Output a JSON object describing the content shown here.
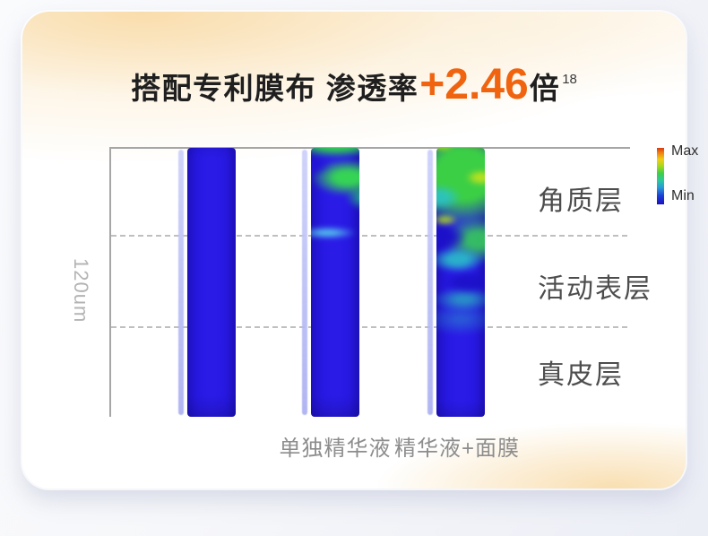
{
  "title": {
    "prefix": "搭配专利膜布 渗透率",
    "highlight": "+2.46",
    "suffix": "倍",
    "superscript": "18"
  },
  "y_axis_label": "120um",
  "legend": {
    "max_label": "Max",
    "min_label": "Min"
  },
  "layer_labels": [
    "角质层",
    "活动表层",
    "真皮层"
  ],
  "bar_labels": [
    "单独精华液",
    "精华液+面膜"
  ],
  "colors": {
    "accent_orange": "#F0640F",
    "bar_blue": "#2315D2",
    "heat_green": "#3BCF45",
    "heat_max_red": "#D93A10",
    "card_peach": "#F9DBA8"
  },
  "chart_data": {
    "type": "heatmap",
    "title": "搭配专利膜布 渗透率+2.46倍",
    "annotation_superscript": "18",
    "penetration_ratio": "+2.46倍",
    "categories": [
      "",
      "单独精华液",
      "精华液+面膜"
    ],
    "depth_axis": {
      "label": "120um",
      "layers": [
        "角质层",
        "活动表层",
        "真皮层"
      ]
    },
    "colorbar": {
      "max": "Max",
      "min": "Min",
      "colormap": "jet"
    },
    "series": [
      {
        "name": "",
        "layer_intensity": {
          "角质层": 0.05,
          "活动表层": 0.05,
          "真皮层": 0.05
        }
      },
      {
        "name": "单独精华液",
        "layer_intensity": {
          "角质层": 0.5,
          "活动表层": 0.1,
          "真皮层": 0.05
        }
      },
      {
        "name": "精华液+面膜",
        "layer_intensity": {
          "角质层": 0.85,
          "活动表层": 0.45,
          "真皮层": 0.1
        }
      }
    ],
    "legend_position": "top-right",
    "grid": "dashed horizontal layer separators"
  }
}
